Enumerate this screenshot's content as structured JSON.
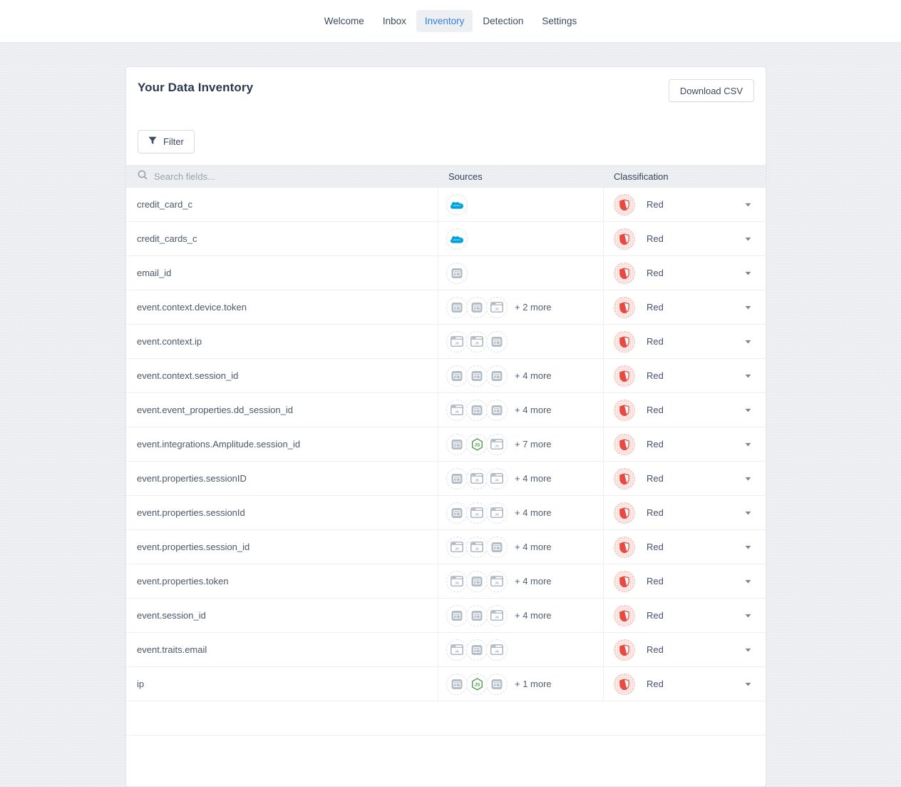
{
  "nav": {
    "items": [
      {
        "label": "Welcome",
        "active": false
      },
      {
        "label": "Inbox",
        "active": false
      },
      {
        "label": "Inventory",
        "active": true
      },
      {
        "label": "Detection",
        "active": false
      },
      {
        "label": "Settings",
        "active": false
      }
    ]
  },
  "inventory": {
    "title": "Your Data Inventory",
    "download_csv_label": "Download CSV",
    "filter_label": "Filter"
  },
  "table": {
    "search_placeholder": "Search fields...",
    "sources_header": "Sources",
    "classification_header": "Classification",
    "rows": [
      {
        "field": "credit_card_c",
        "sources": [
          "salesforce"
        ],
        "more": "",
        "classification": "Red"
      },
      {
        "field": "credit_cards_c",
        "sources": [
          "salesforce"
        ],
        "more": "",
        "classification": "Red"
      },
      {
        "field": "email_id",
        "sources": [
          "window-filled"
        ],
        "more": "",
        "classification": "Red"
      },
      {
        "field": "event.context.device.token",
        "sources": [
          "window-filled",
          "window-filled",
          "window-outline"
        ],
        "more": "+ 2 more",
        "classification": "Red"
      },
      {
        "field": "event.context.ip",
        "sources": [
          "window-outline",
          "window-outline",
          "window-filled"
        ],
        "more": "",
        "classification": "Red"
      },
      {
        "field": "event.context.session_id",
        "sources": [
          "window-filled",
          "window-filled",
          "window-filled"
        ],
        "more": "+ 4 more",
        "classification": "Red"
      },
      {
        "field": "event.event_properties.dd_session_id",
        "sources": [
          "window-outline",
          "window-filled",
          "window-filled"
        ],
        "more": "+ 4 more",
        "classification": "Red"
      },
      {
        "field": "event.integrations.Amplitude.session_id",
        "sources": [
          "window-filled",
          "nodejs",
          "window-outline"
        ],
        "more": "+ 7 more",
        "classification": "Red"
      },
      {
        "field": "event.properties.sessionID",
        "sources": [
          "window-filled",
          "window-outline",
          "window-outline"
        ],
        "more": "+ 4 more",
        "classification": "Red"
      },
      {
        "field": "event.properties.sessionId",
        "sources": [
          "window-filled",
          "window-outline",
          "window-outline"
        ],
        "more": "+ 4 more",
        "classification": "Red"
      },
      {
        "field": "event.properties.session_id",
        "sources": [
          "window-outline",
          "window-outline",
          "window-filled"
        ],
        "more": "+ 4 more",
        "classification": "Red"
      },
      {
        "field": "event.properties.token",
        "sources": [
          "window-outline",
          "window-filled",
          "window-outline"
        ],
        "more": "+ 4 more",
        "classification": "Red"
      },
      {
        "field": "event.session_id",
        "sources": [
          "window-filled",
          "window-filled",
          "window-outline"
        ],
        "more": "+ 4 more",
        "classification": "Red"
      },
      {
        "field": "event.traits.email",
        "sources": [
          "window-outline",
          "window-filled",
          "window-outline"
        ],
        "more": "",
        "classification": "Red"
      },
      {
        "field": "ip",
        "sources": [
          "window-filled",
          "nodejs",
          "window-filled"
        ],
        "more": "+ 1 more",
        "classification": "Red"
      }
    ]
  },
  "colors": {
    "accent_blue": "#2f80e0",
    "salesforce_blue": "#00a1e0",
    "node_green": "#4a9e48",
    "classification_red": "#e84a42"
  }
}
